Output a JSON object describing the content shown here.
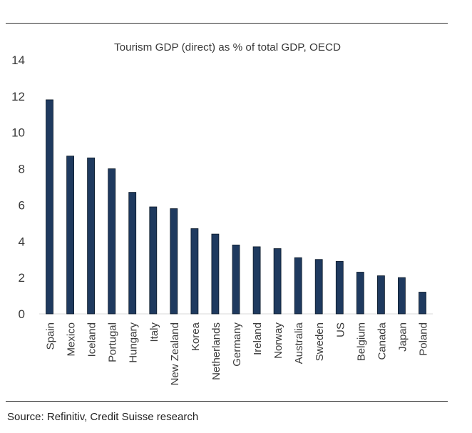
{
  "chart_data": {
    "type": "bar",
    "title": "Tourism GDP (direct) as % of total GDP, OECD",
    "xlabel": "",
    "ylabel": "",
    "ylim": [
      0,
      14
    ],
    "yticks": [
      0,
      2,
      4,
      6,
      8,
      10,
      12,
      14
    ],
    "grid": false,
    "bar_color": "#1f3a5f",
    "categories": [
      "Spain",
      "Mexico",
      "Iceland",
      "Portugal",
      "Hungary",
      "Italy",
      "New Zealand",
      "Korea",
      "Netherlands",
      "Germany",
      "Ireland",
      "Norway",
      "Australia",
      "Sweden",
      "US",
      "Belgium",
      "Canada",
      "Japan",
      "Poland"
    ],
    "values": [
      11.8,
      8.7,
      8.6,
      8.0,
      6.7,
      5.9,
      5.8,
      4.7,
      4.4,
      3.8,
      3.7,
      3.6,
      3.1,
      3.0,
      2.9,
      2.3,
      2.1,
      2.0,
      1.2
    ]
  },
  "footer": {
    "source": "Source: Refinitiv, Credit Suisse research"
  }
}
